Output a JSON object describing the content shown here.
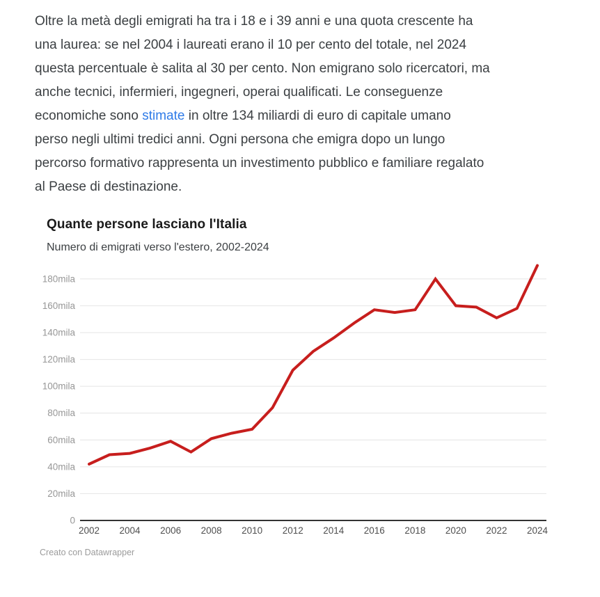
{
  "article": {
    "paragraph": {
      "link_color": "#2f7be8",
      "text_color": "#3c4043",
      "lines": [
        [
          {
            "t": "Oltre la metà degli emigrati ha tra i 18 e i 39 anni e una quota crescente ha"
          }
        ],
        [
          {
            "t": "una laurea: se nel 2004 i laureati erano il 10 per cento del totale, nel 2024"
          }
        ],
        [
          {
            "t": "questa percentuale è salita al 30 per cento. Non emigrano solo ricercatori, ma"
          }
        ],
        [
          {
            "t": "anche tecnici, infermieri, ingegneri, operai qualificati. Le conseguenze"
          }
        ],
        [
          {
            "t": "economiche sono "
          },
          {
            "t": "stimate",
            "link": true
          },
          {
            "t": " in oltre 134 miliardi di euro di capitale umano"
          }
        ],
        [
          {
            "t": "perso negli ultimi tredici anni. Ogni persona che emigra dopo un lungo"
          }
        ],
        [
          {
            "t": "percorso formativo rappresenta un investimento pubblico e familiare regalato"
          }
        ],
        [
          {
            "t": "al Paese di destinazione."
          }
        ]
      ]
    }
  },
  "chart": {
    "title": "Quante persone lasciano l'Italia",
    "subtitle": "Numero di emigrati verso l'estero, 2002-2024",
    "attribution": "Creato con Datawrapper",
    "colors": {
      "line": "#c71e1d",
      "grid": "#e4e4e4",
      "axis": "#333333",
      "y_tick_text": "#979797",
      "x_tick_text": "#4f4f4f"
    }
  },
  "chart_data": {
    "type": "line",
    "title": "Quante persone lasciano l'Italia",
    "subtitle": "Numero di emigrati verso l'estero, 2002-2024",
    "unit": "mila (thousands of people)",
    "x": [
      2002,
      2003,
      2004,
      2005,
      2006,
      2007,
      2008,
      2009,
      2010,
      2011,
      2012,
      2013,
      2014,
      2015,
      2016,
      2017,
      2018,
      2019,
      2020,
      2021,
      2022,
      2023,
      2024
    ],
    "series": [
      {
        "name": "Numero di emigrati verso l'estero",
        "values_thousands": [
          42,
          49,
          50,
          54,
          59,
          51,
          61,
          65,
          68,
          84,
          112,
          126,
          136,
          147,
          157,
          155,
          157,
          180,
          160,
          159,
          151,
          158,
          190
        ],
        "color": "#c71e1d"
      }
    ],
    "ylim": [
      0,
      195
    ],
    "yticks_thousands": [
      0,
      20,
      40,
      60,
      80,
      100,
      120,
      140,
      160,
      180
    ],
    "ytick_labels": [
      "0",
      "20mila",
      "40mila",
      "60mila",
      "80mila",
      "100mila",
      "120mila",
      "140mila",
      "160mila",
      "180mila"
    ],
    "xtick_labels": [
      "2002",
      "2004",
      "2006",
      "2008",
      "2010",
      "2012",
      "2014",
      "2016",
      "2018",
      "2020",
      "2022",
      "2024"
    ],
    "grid": "horizontal",
    "legend_position": "none"
  }
}
